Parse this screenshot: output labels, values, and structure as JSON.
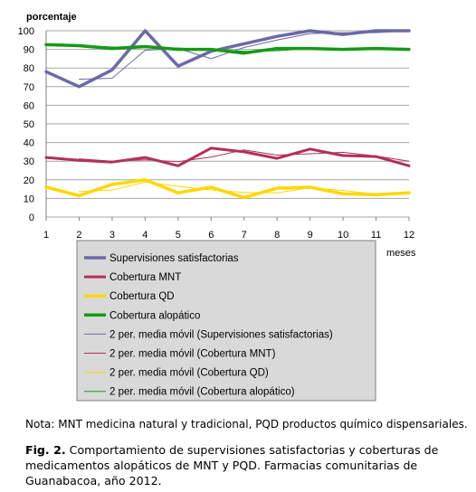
{
  "chart_data": {
    "type": "line",
    "ylabel": "porcentaje",
    "xlabel": "meses",
    "x": [
      1,
      2,
      3,
      4,
      5,
      6,
      7,
      8,
      9,
      10,
      11,
      12
    ],
    "xticks": [
      "1",
      "2",
      "3",
      "4",
      "5",
      "6",
      "7",
      "8",
      "9",
      "10",
      "11",
      "12"
    ],
    "yticks": [
      "0",
      "10",
      "20",
      "30",
      "40",
      "50",
      "60",
      "70",
      "80",
      "90",
      "100"
    ],
    "ylim": [
      0,
      100
    ],
    "grid": true,
    "legend_position": "bottom",
    "series": [
      {
        "name": "Supervisiones satisfactorias",
        "color": "#6b6aa6",
        "width": 3.5,
        "values": [
          78,
          70,
          79,
          100,
          81,
          89,
          93,
          97,
          100,
          98,
          100,
          100
        ]
      },
      {
        "name": "Cobertura MNT",
        "color": "#b0305d",
        "width": 3,
        "values": [
          32,
          30.5,
          29.5,
          32,
          27.5,
          37,
          35,
          31.5,
          36.5,
          33,
          32.5,
          27.5
        ]
      },
      {
        "name": "Cobertura QD",
        "color": "#ffd700",
        "width": 3.5,
        "values": [
          16,
          11.5,
          17.5,
          20,
          13,
          16,
          10.5,
          15.5,
          16,
          12.5,
          12,
          13
        ]
      },
      {
        "name": "Cobertura alopático",
        "color": "#139a15",
        "width": 3.5,
        "values": [
          92.5,
          92,
          90.5,
          91.5,
          90,
          90,
          88,
          90.5,
          90.5,
          90,
          90.5,
          90
        ]
      },
      {
        "name": "2 per. media móvil (Supervisiones satisfactorias)",
        "color": "#6b6aa6",
        "width": 1,
        "moving_average_of": 0,
        "values": [
          null,
          74,
          74.5,
          89.5,
          90.5,
          85,
          91,
          95,
          98.5,
          99,
          99,
          100
        ]
      },
      {
        "name": "2 per. media móvil (Cobertura MNT)",
        "color": "#b0305d",
        "width": 1,
        "moving_average_of": 1,
        "values": [
          null,
          31.25,
          30,
          30.75,
          29.75,
          32.25,
          36,
          33.25,
          34,
          34.75,
          32.75,
          30
        ]
      },
      {
        "name": "2 per. media móvil (Cobertura QD)",
        "color": "#ffd700",
        "width": 1,
        "moving_average_of": 2,
        "values": [
          null,
          13.75,
          14.5,
          18.75,
          16.5,
          14.5,
          13.25,
          13,
          15.75,
          14.25,
          12.25,
          12.5
        ]
      },
      {
        "name": "2 per. media móvil (Cobertura alopático)",
        "color": "#139a15",
        "width": 1,
        "moving_average_of": 3,
        "values": [
          null,
          92.25,
          91.25,
          91,
          90.75,
          90,
          89,
          89.25,
          90.5,
          90.25,
          90.25,
          90.25
        ]
      }
    ]
  },
  "note": "Nota: MNT medicina natural y tradicional, PQD productos químico dispensariales.",
  "caption": {
    "label": "Fig. 2.",
    "text": " Comportamiento de supervisiones satisfactorias y coberturas de medicamentos alopáticos de MNT y PQD. Farmacias comunitarias de Guanabacoa, año 2012."
  }
}
